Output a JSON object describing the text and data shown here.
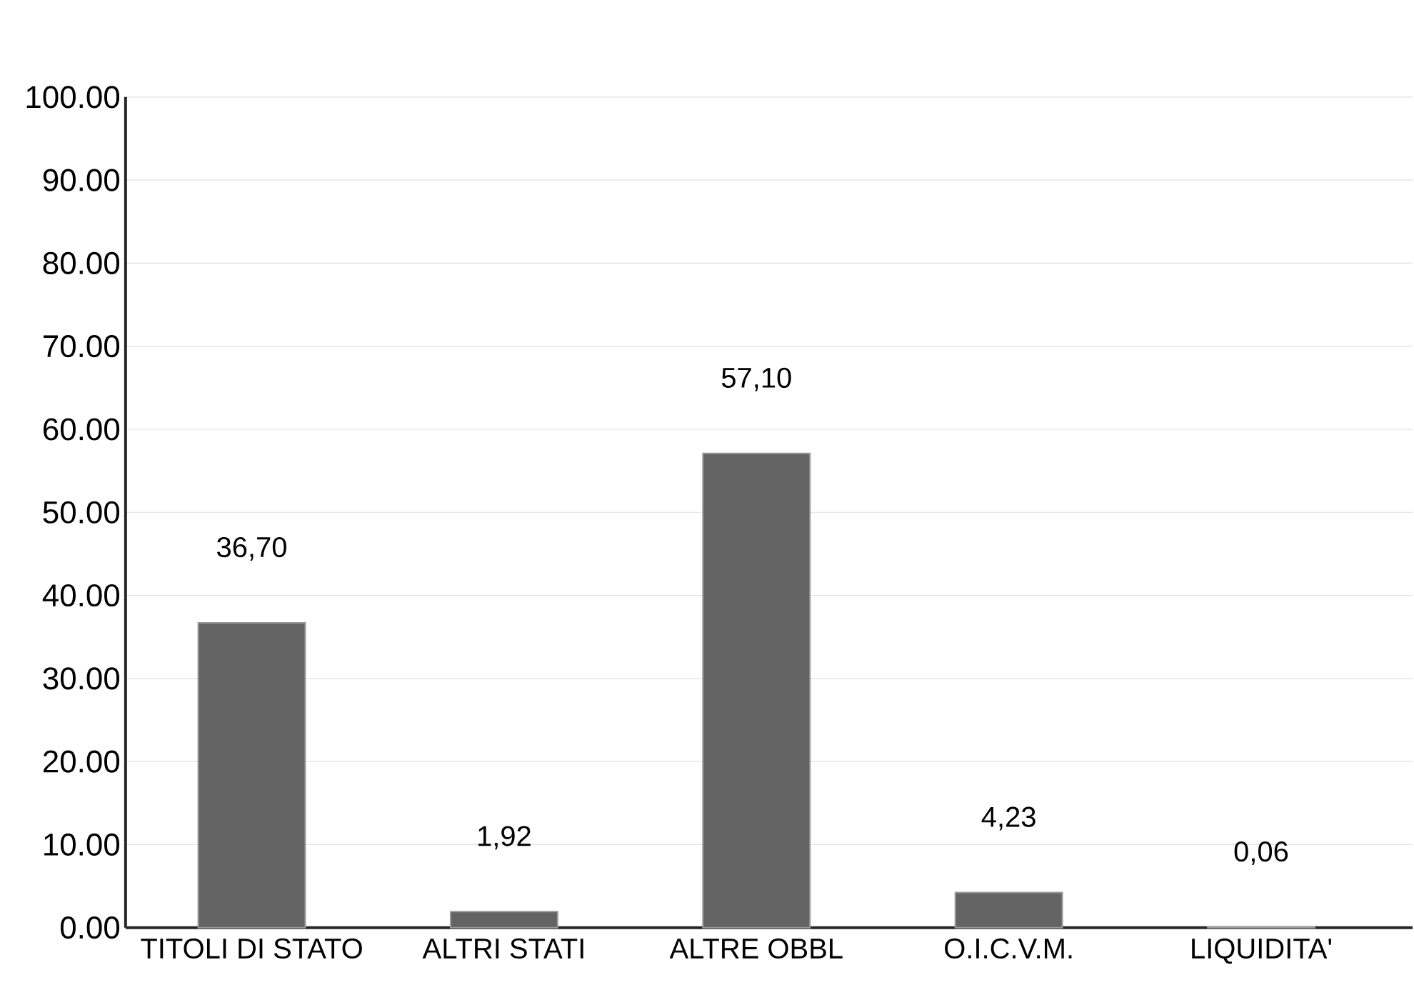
{
  "chart_data": {
    "type": "bar",
    "categories": [
      "TITOLI DI STATO",
      "ALTRI STATI",
      "ALTRE OBBL",
      "O.I.C.V.M.",
      "LIQUIDITA'"
    ],
    "values": [
      36.7,
      1.92,
      57.1,
      4.23,
      0.06
    ],
    "value_labels": [
      "36,70",
      "1,92",
      "57,10",
      "4,23",
      "0,06"
    ],
    "color": "#636363",
    "ylim": [
      0,
      100
    ],
    "yticks": [
      {
        "value": 0,
        "label": "0.00"
      },
      {
        "value": 10,
        "label": "10.00"
      },
      {
        "value": 20,
        "label": "20.00"
      },
      {
        "value": 30,
        "label": "30.00"
      },
      {
        "value": 40,
        "label": "40.00"
      },
      {
        "value": 50,
        "label": "50.00"
      },
      {
        "value": 60,
        "label": "60.00"
      },
      {
        "value": 70,
        "label": "70.00"
      },
      {
        "value": 80,
        "label": "80.00"
      },
      {
        "value": 90,
        "label": "90.00"
      },
      {
        "value": 100,
        "label": "100.00"
      }
    ],
    "grid": "y"
  }
}
